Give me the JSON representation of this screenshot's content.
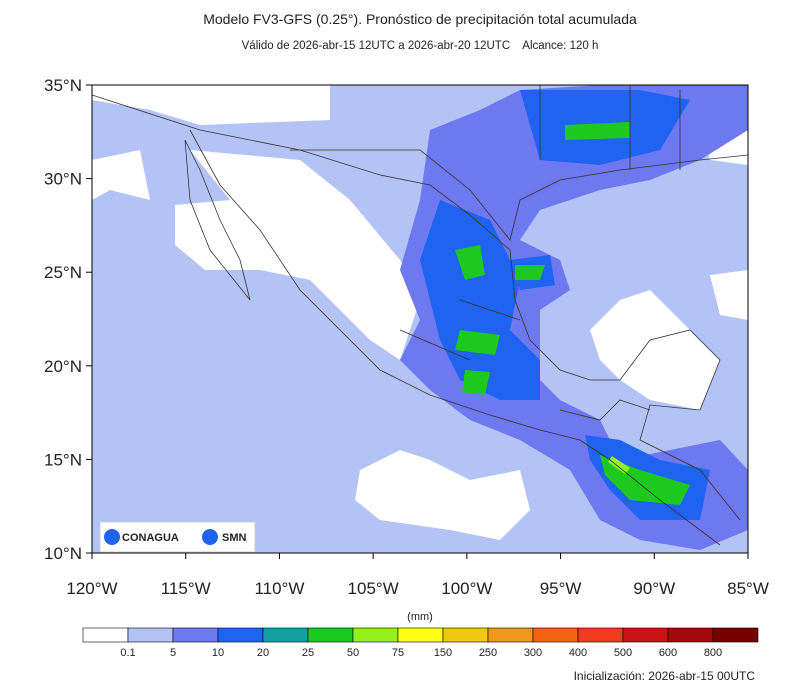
{
  "header": {
    "title": "Modelo FV3-GFS (0.25°). Pronóstico de precipitación total acumulada",
    "subtitle": "Válido de 2026-abr-15 12UTC a 2026-abr-20 12UTC    Alcance: 120 h"
  },
  "map": {
    "lat_ticks": [
      "35°N",
      "30°N",
      "25°N",
      "20°N",
      "15°N",
      "10°N"
    ],
    "lon_ticks": [
      "120°W",
      "115°W",
      "110°W",
      "105°W",
      "100°W",
      "95°W",
      "90°W",
      "85°W"
    ],
    "logos": [
      "CONAGUA",
      "SMN"
    ]
  },
  "colorbar": {
    "unit": "(mm)",
    "labels": [
      "0.1",
      "5",
      "10",
      "20",
      "25",
      "50",
      "75",
      "150",
      "250",
      "300",
      "400",
      "500",
      "600",
      "800"
    ],
    "colors": [
      "#ffffff",
      "#b4c3f5",
      "#6e78f0",
      "#1e64f0",
      "#14a0a0",
      "#1ec81e",
      "#96f01e",
      "#ffff14",
      "#f0c814",
      "#f0961e",
      "#f06414",
      "#f03c1e",
      "#c81414",
      "#a00a0a",
      "#780000"
    ]
  },
  "footer": {
    "init": "Inicialización: 2026-abr-15 00UTC"
  }
}
